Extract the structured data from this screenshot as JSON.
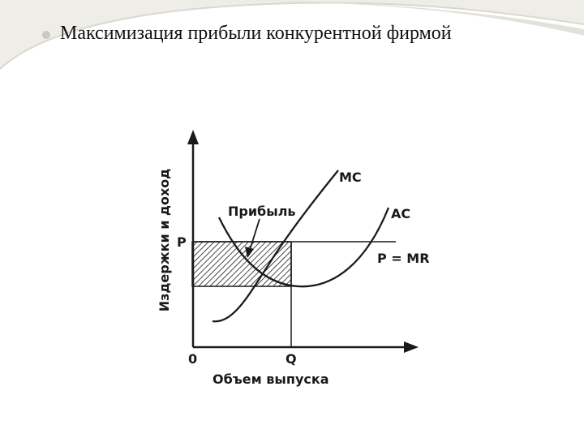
{
  "slide": {
    "title": "Максимизация прибыли конкурентной фирмой"
  },
  "diagram": {
    "y_axis_label": "Издержки и доход",
    "x_axis_label": "Объем выпуска",
    "origin_label": "0",
    "price_label": "P",
    "quantity_label": "Q",
    "mc_label": "MC",
    "ac_label": "AC",
    "p_mr_label": "P = MR",
    "profit_label": "Прибыль"
  },
  "colors": {
    "ink": "#1a1a1a",
    "bullet": "#c9c9c0",
    "decor": "#e9e8e2"
  }
}
